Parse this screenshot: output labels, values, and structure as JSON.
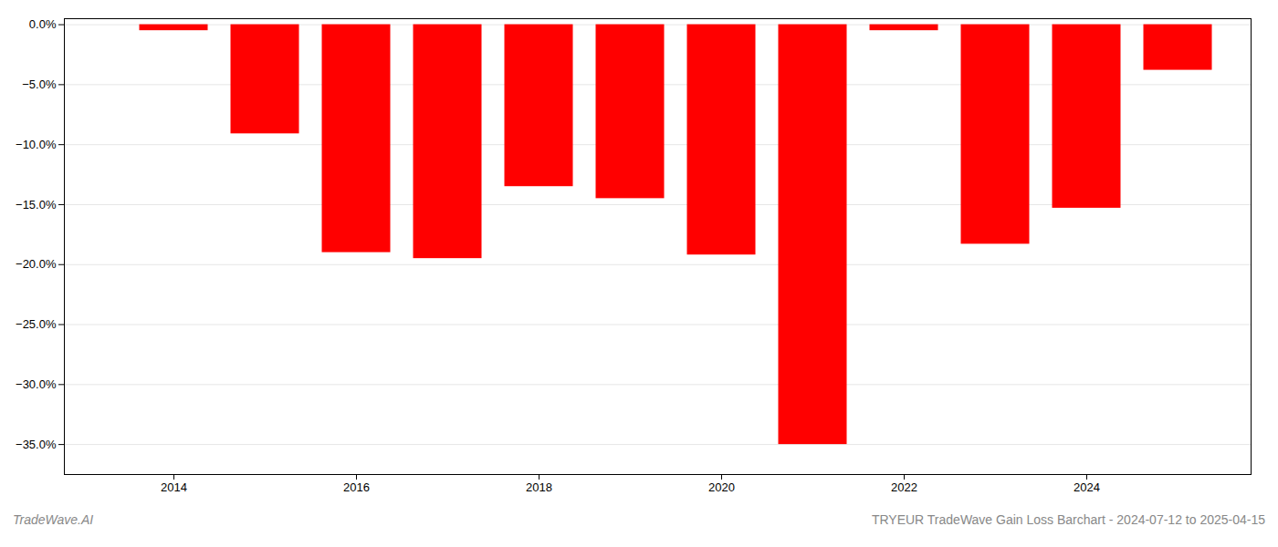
{
  "chart_data": {
    "type": "bar",
    "title": "TRYEUR TradeWave Gain Loss Barchart - 2024-07-12 to 2025-04-15",
    "annotations": [
      "TradeWave.AI"
    ],
    "x": [
      2014,
      2015,
      2016,
      2017,
      2018,
      2019,
      2020,
      2021,
      2022,
      2023,
      2024,
      2025
    ],
    "values": [
      -0.005,
      -0.091,
      -0.19,
      -0.195,
      -0.135,
      -0.145,
      -0.192,
      -0.35,
      -0.005,
      -0.183,
      -0.153,
      -0.038
    ],
    "color": "#ff0000",
    "xlim": [
      2012.8,
      2025.8
    ],
    "xticks": [
      2014,
      2016,
      2018,
      2020,
      2022,
      2024
    ],
    "ylim": [
      -0.375,
      0.005
    ],
    "yticks": [
      {
        "value": 0.0,
        "label": "0.0%"
      },
      {
        "value": -0.05,
        "label": "−5.0%"
      },
      {
        "value": -0.1,
        "label": "−10.0%"
      },
      {
        "value": -0.15,
        "label": "−15.0%"
      },
      {
        "value": -0.2,
        "label": "−20.0%"
      },
      {
        "value": -0.25,
        "label": "−25.0%"
      },
      {
        "value": -0.3,
        "label": "−30.0%"
      },
      {
        "value": -0.35,
        "label": "−35.0%"
      }
    ],
    "grid": true
  }
}
